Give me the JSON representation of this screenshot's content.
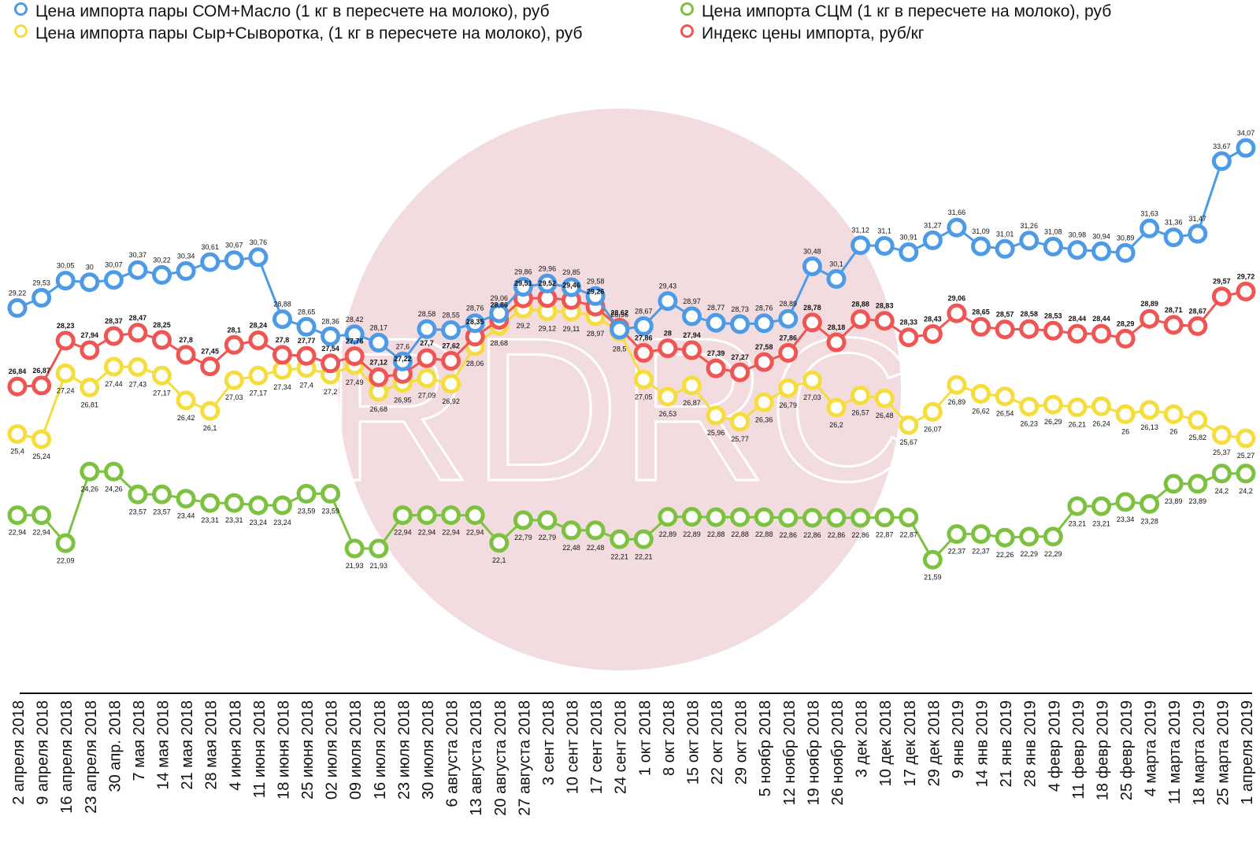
{
  "colors": {
    "butter": "#4d9be6",
    "cheese": "#f5dd3e",
    "milk_powder": "#7cc240",
    "index": "#ee5553",
    "watermark": "#f3dcdf"
  },
  "chart_data": {
    "type": "line",
    "watermark": "RDRC",
    "categories": [
      "2 апреля 2018",
      "9 апреля 2018",
      "16 апреля 2018",
      "23 апреля 2018",
      "30 апр. 2018",
      "7 мая 2018",
      "14 мая 2018",
      "21 мая 2018",
      "28 мая 2018",
      "4 июня 2018",
      "11 июня 2018",
      "18 июня 2018",
      "25 июня 2018",
      "02 июля 2018",
      "09 июля 2018",
      "16 июля 2018",
      "23 июля 2018",
      "30 июля 2018",
      "6 августа 2018",
      "13 августа 2018",
      "20 августа 2018",
      "27 августа 2018",
      "3 сент 2018",
      "10 сент 2018",
      "17 сент 2018",
      "24 сент 2018",
      "1 окт 2018",
      "8 окт 2018",
      "15 окт 2018",
      "22 окт 2018",
      "29 окт 2018",
      "5 ноябр 2018",
      "12 ноябр 2018",
      "19 ноябр 2018",
      "26 ноябр 2018",
      "3 дек 2018",
      "10 дек 2018",
      "17 дек 2018",
      "29 дек 2018",
      "9 янв 2019",
      "14 янв 2019",
      "21 янв 2019",
      "28 янв 2019",
      "4 февр 2019",
      "11 февр 2019",
      "18 февр 2019",
      "25 февр 2019",
      "4 марта 2019",
      "11 марта 2019",
      "18 марта 2019",
      "25 марта 2019",
      "1 апреля 2019"
    ],
    "series": [
      {
        "name": "Цена импорта пары СОМ+Масло (1 кг в пересчете на молоко), руб",
        "key": "butter",
        "label_pos": "above",
        "bold": false,
        "values": [
          29.22,
          29.53,
          30.05,
          30,
          30.07,
          30.37,
          30.22,
          30.34,
          30.61,
          30.67,
          30.76,
          28.88,
          28.65,
          28.36,
          28.42,
          28.17,
          27.6,
          28.58,
          28.55,
          28.76,
          29.06,
          29.86,
          29.96,
          29.85,
          29.58,
          28.56,
          28.67,
          29.43,
          28.97,
          28.77,
          28.73,
          28.76,
          28.89,
          30.48,
          30.1,
          31.12,
          31.1,
          30.91,
          31.27,
          31.66,
          31.09,
          31.01,
          31.26,
          31.08,
          30.98,
          30.94,
          30.89,
          31.63,
          31.36,
          31.47,
          33.67,
          34.07
        ]
      },
      {
        "name": "Цена импорта пары Сыр+Сыворотка, (1 кг в пересчете на молоко), руб",
        "key": "cheese",
        "label_pos": "below",
        "bold": false,
        "values": [
          25.4,
          25.24,
          27.24,
          26.81,
          27.44,
          27.43,
          27.17,
          26.42,
          26.1,
          27.03,
          27.17,
          27.34,
          27.4,
          27.2,
          27.49,
          26.68,
          26.95,
          27.09,
          26.92,
          28.06,
          28.68,
          29.2,
          29.12,
          29.11,
          28.97,
          28.5,
          27.05,
          26.53,
          26.87,
          25.96,
          25.77,
          26.36,
          26.79,
          27.03,
          26.2,
          26.57,
          26.48,
          25.67,
          26.07,
          26.89,
          26.62,
          26.54,
          26.23,
          26.29,
          26.21,
          26.24,
          26,
          26.13,
          26,
          25.82,
          25.37,
          25.27
        ]
      },
      {
        "name": "Цена импорта СЦМ (1 кг в пересчете на молоко), руб",
        "key": "milk_powder",
        "label_pos": "below",
        "bold": false,
        "values": [
          22.94,
          22.94,
          22.09,
          24.26,
          24.26,
          23.57,
          23.57,
          23.44,
          23.31,
          23.31,
          23.24,
          23.24,
          23.59,
          23.59,
          21.93,
          21.93,
          22.94,
          22.94,
          22.94,
          22.94,
          22.1,
          22.79,
          22.79,
          22.48,
          22.48,
          22.21,
          22.21,
          22.89,
          22.89,
          22.88,
          22.88,
          22.88,
          22.86,
          22.86,
          22.86,
          22.86,
          22.87,
          22.87,
          21.59,
          22.37,
          22.37,
          22.26,
          22.29,
          22.29,
          23.21,
          23.21,
          23.34,
          23.28,
          23.89,
          23.89,
          24.2,
          24.2
        ]
      },
      {
        "name": "Индекс цены импорта, руб/кг",
        "key": "index",
        "label_pos": "above",
        "bold": true,
        "values": [
          26.84,
          26.87,
          28.23,
          27.94,
          28.37,
          28.47,
          28.25,
          27.8,
          27.45,
          28.1,
          28.24,
          27.8,
          27.77,
          27.54,
          27.76,
          27.12,
          27.22,
          27.7,
          27.62,
          28.35,
          28.86,
          29.51,
          29.52,
          29.46,
          29.26,
          28.62,
          27.86,
          28,
          27.94,
          27.39,
          27.27,
          27.58,
          27.86,
          28.78,
          28.18,
          28.88,
          28.83,
          28.33,
          28.43,
          29.06,
          28.65,
          28.57,
          28.58,
          28.53,
          28.44,
          28.44,
          28.29,
          28.89,
          28.71,
          28.67,
          29.57,
          29.72
        ]
      }
    ],
    "legend": [
      "Цена импорта пары СОМ+Масло (1 кг в пересчете на молоко), руб",
      "Цена импорта СЦМ (1 кг в пересчете на молоко), руб",
      "Цена импорта пары Сыр+Сыворотка, (1 кг в пересчете на молоко), руб",
      "Индекс цены импорта, руб/кг"
    ],
    "legend_placement": "top",
    "ylim": [
      21.0,
      34.5
    ],
    "grid": false
  }
}
